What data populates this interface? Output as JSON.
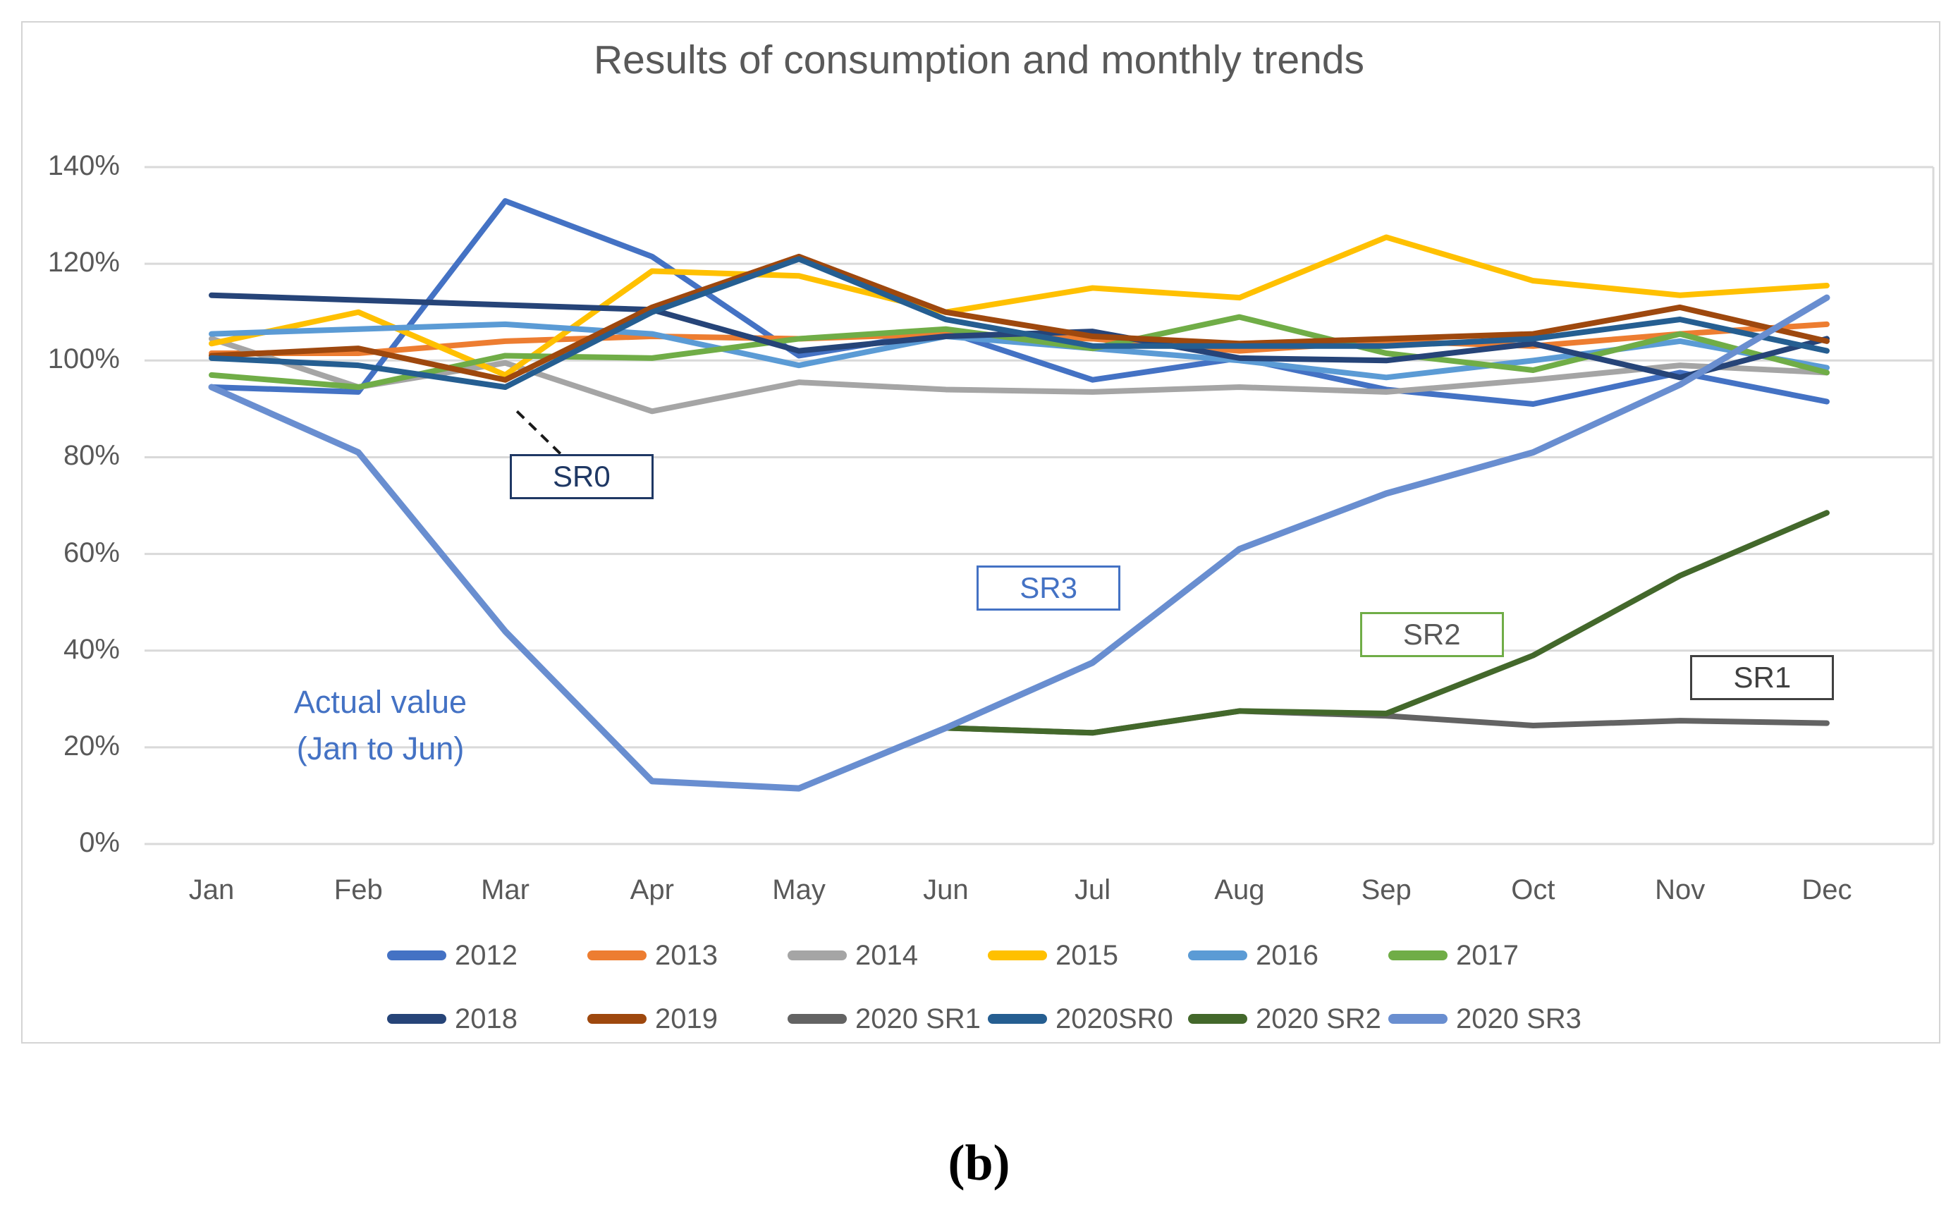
{
  "figure": {
    "title": "Results of consumption and monthly trends",
    "caption": "(b)"
  },
  "chart_data": {
    "type": "line",
    "title": "Results of consumption and monthly trends",
    "categories": [
      "Jan",
      "Feb",
      "Mar",
      "Apr",
      "May",
      "Jun",
      "Jul",
      "Aug",
      "Sep",
      "Oct",
      "Nov",
      "Dec"
    ],
    "y_axis": {
      "min": 0,
      "max": 140,
      "step": 20,
      "unit": "%",
      "tick_labels": [
        "0%",
        "20%",
        "40%",
        "60%",
        "80%",
        "100%",
        "120%",
        "140%"
      ]
    },
    "grid": true,
    "legend_position": "bottom",
    "series": [
      {
        "name": "2012",
        "color": "#4472C4",
        "width": 8,
        "values": [
          94.5,
          93.5,
          133,
          121.5,
          101,
          106,
          96,
          100.5,
          94,
          91,
          97.5,
          91.5
        ]
      },
      {
        "name": "2013",
        "color": "#ED7D31",
        "width": 8,
        "values": [
          101.5,
          101.5,
          104,
          105,
          104.5,
          105.5,
          104.5,
          102,
          104,
          103,
          105.5,
          107.5
        ]
      },
      {
        "name": "2014",
        "color": "#A5A5A5",
        "width": 8,
        "values": [
          104.5,
          94.5,
          99.5,
          89.5,
          95.5,
          94,
          93.5,
          94.5,
          93.5,
          96,
          99,
          97.5
        ]
      },
      {
        "name": "2015",
        "color": "#FFC000",
        "width": 8,
        "values": [
          103.5,
          110,
          97,
          118.5,
          117.5,
          110,
          115,
          113,
          125.5,
          116.5,
          113.5,
          115.5
        ]
      },
      {
        "name": "2016",
        "color": "#5B9BD5",
        "width": 8,
        "values": [
          105.5,
          106.5,
          107.5,
          105.5,
          99,
          105,
          102.5,
          100,
          96.5,
          100,
          104,
          98.5
        ]
      },
      {
        "name": "2017",
        "color": "#70AD47",
        "width": 8,
        "values": [
          97,
          94.5,
          101,
          100.5,
          104.5,
          106.5,
          102.5,
          109,
          101.5,
          98,
          105.5,
          97.5
        ]
      },
      {
        "name": "2018",
        "color": "#264478",
        "width": 8,
        "values": [
          113.5,
          112.5,
          111.5,
          110.5,
          102,
          105,
          106,
          100.5,
          100,
          103.5,
          96.5,
          104.5
        ]
      },
      {
        "name": "2019",
        "color": "#9E480E",
        "width": 8,
        "values": [
          101,
          102.5,
          96,
          111,
          121.5,
          110,
          105,
          103.5,
          104.5,
          105.5,
          111,
          104
        ]
      },
      {
        "name": "2020 SR1",
        "color": "#636363",
        "width": 8,
        "values": [
          null,
          null,
          null,
          null,
          null,
          24,
          23,
          27.5,
          26.5,
          24.5,
          25.5,
          25
        ]
      },
      {
        "name": "2020SR0",
        "color": "#255E91",
        "width": 8,
        "values": [
          100.5,
          99,
          94.5,
          110,
          121,
          108.5,
          103,
          103,
          103,
          104.5,
          108.5,
          102
        ]
      },
      {
        "name": "2020 SR2",
        "color": "#43682B",
        "width": 8,
        "values": [
          null,
          null,
          null,
          null,
          null,
          24,
          23,
          27.5,
          27,
          39,
          55.5,
          68.5
        ]
      },
      {
        "name": "2020 SR3",
        "color": "#698ED0",
        "width": 9,
        "values": [
          94.5,
          81,
          44,
          13,
          11.5,
          24,
          37.5,
          61,
          72.5,
          81,
          95,
          113
        ]
      }
    ],
    "legend_rows": [
      [
        "2012",
        "2013",
        "2014",
        "2015",
        "2016",
        "2017"
      ],
      [
        "2018",
        "2019",
        "2020 SR1",
        "2020SR0",
        "2020 SR2",
        "2020 SR3"
      ]
    ],
    "annotations": [
      {
        "id": "sr0-label",
        "shape": "box",
        "label": "SR0",
        "month": 2.52,
        "value": 76,
        "border_color": "#1F3864",
        "text_color": "#1F3864"
      },
      {
        "id": "sr3-label",
        "shape": "box",
        "label": "SR3",
        "month": 5.7,
        "value": 53,
        "border_color": "#4472C4",
        "text_color": "#4472C4"
      },
      {
        "id": "sr2-label",
        "shape": "box",
        "label": "SR2",
        "month": 8.31,
        "value": 43.3,
        "border_color": "#70AD47",
        "text_color": "#595959"
      },
      {
        "id": "sr1-label",
        "shape": "box",
        "label": "SR1",
        "month": 10.56,
        "value": 34.4,
        "border_color": "#404040",
        "text_color": "#404040"
      },
      {
        "id": "actual-value-note",
        "shape": "text",
        "label": "Actual value\n(Jan to Jun)",
        "month": 1.15,
        "value": 24.5,
        "text_color": "#4472C4"
      },
      {
        "id": "sr0-callout",
        "shape": "dashed-line",
        "from_month": 2.08,
        "from_value": 89.5,
        "to_month": 2.39,
        "to_value": 80.3,
        "color": "#1a1a1a"
      }
    ],
    "colors": {
      "grid": "#D9D9D9",
      "axis_text": "#595959",
      "title_text": "#595959"
    }
  }
}
